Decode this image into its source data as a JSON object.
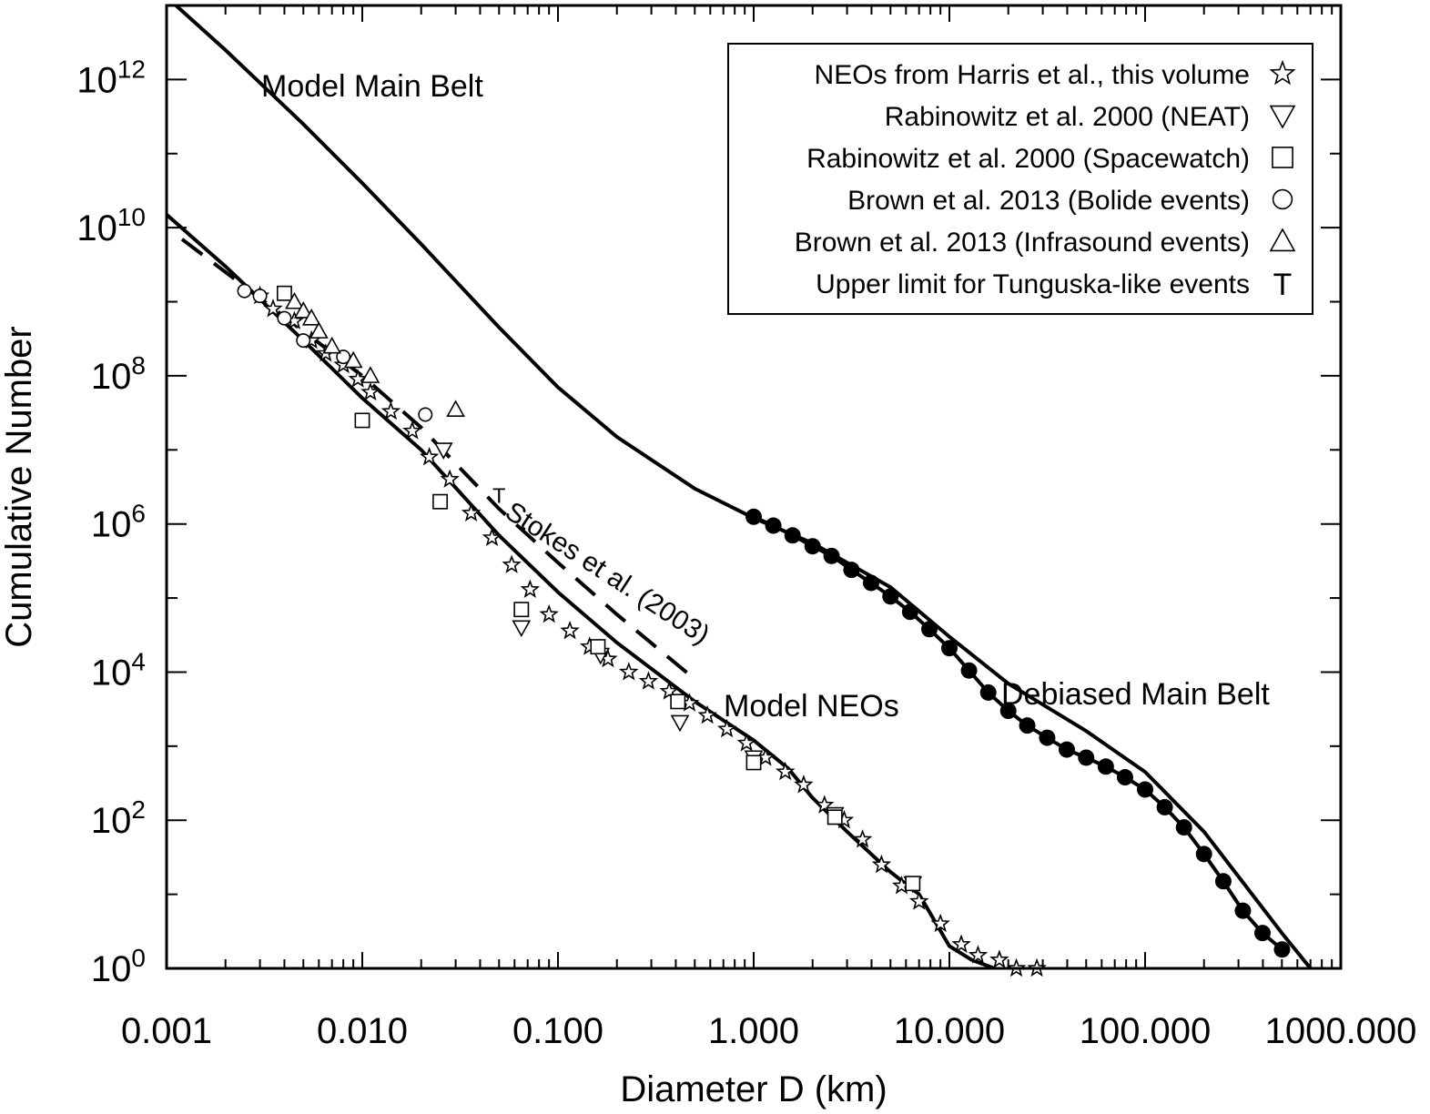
{
  "chart_data": {
    "type": "scatter",
    "xlabel": "Diameter D (km)",
    "ylabel": "Cumulative Number",
    "xscale": "log",
    "yscale": "log",
    "xlim": [
      0.001,
      1000
    ],
    "ylim": [
      1,
      10000000000000.0
    ],
    "grid": false,
    "legend_position": "top-right",
    "x_tick_labels": [
      "0.001",
      "0.010",
      "0.100",
      "1.000",
      "10.000",
      "100.000",
      "1000.000"
    ],
    "x_tick_values": [
      0.001,
      0.01,
      0.1,
      1,
      10,
      100,
      1000
    ],
    "y_tick_base": [
      "10",
      "10",
      "10",
      "10",
      "10",
      "10",
      "10"
    ],
    "y_tick_exp": [
      "0",
      "2",
      "4",
      "6",
      "8",
      "10",
      "12"
    ],
    "y_tick_values": [
      1,
      100,
      10000,
      1000000,
      100000000,
      10000000000,
      1000000000000
    ],
    "legend": [
      {
        "label": "NEOs from Harris et al., this volume",
        "symbol": "☆"
      },
      {
        "label": "Rabinowitz et al. 2000 (NEAT)",
        "symbol": "▽"
      },
      {
        "label": "Rabinowitz et al. 2000 (Spacewatch)",
        "symbol": "□"
      },
      {
        "label": "Brown et al. 2013 (Bolide events)",
        "symbol": "○"
      },
      {
        "label": "Brown et al. 2013 (Infrasound events)",
        "symbol": "△"
      },
      {
        "label": "Upper limit for Tunguska-like events",
        "symbol": "T"
      }
    ],
    "annotations": {
      "model_main_belt": "Model Main Belt",
      "model_neos": "Model NEOs",
      "debiased_main_belt": "Debiased Main Belt",
      "stokes": "Stokes et al. (2003)",
      "tunguska_marker": "T"
    },
    "series": [
      {
        "name": "Model Main Belt",
        "kind": "line",
        "points": [
          [
            0.001,
            13000000000000.0
          ],
          [
            0.002,
            2500000000000.0
          ],
          [
            0.005,
            250000000000.0
          ],
          [
            0.01,
            40000000000.0
          ],
          [
            0.02,
            6000000000.0
          ],
          [
            0.05,
            450000000.0
          ],
          [
            0.1,
            70000000.0
          ],
          [
            0.2,
            15000000.0
          ],
          [
            0.5,
            3000000.0
          ],
          [
            1,
            1200000.0
          ],
          [
            2,
            550000.0
          ],
          [
            5,
            140000.0
          ],
          [
            10,
            30000.0
          ],
          [
            20,
            7000.0
          ],
          [
            50,
            1600.0
          ],
          [
            100,
            450.0
          ],
          [
            200,
            70
          ],
          [
            500,
            3
          ],
          [
            700,
            1
          ]
        ]
      },
      {
        "name": "Debiased Main Belt",
        "kind": "points",
        "points": [
          [
            1,
            1250000.0
          ],
          [
            1.26,
            950000.0
          ],
          [
            1.58,
            700000.0
          ],
          [
            2,
            500000.0
          ],
          [
            2.5,
            370000.0
          ],
          [
            3.16,
            240000.0
          ],
          [
            3.98,
            160000.0
          ],
          [
            5,
            105000.0
          ],
          [
            6.3,
            65000.0
          ],
          [
            7.9,
            38000.0
          ],
          [
            10,
            21000.0
          ],
          [
            12.6,
            10500.0
          ],
          [
            15.8,
            5300.0
          ],
          [
            20,
            3000.0
          ],
          [
            25,
            1900.0
          ],
          [
            31.6,
            1300.0
          ],
          [
            39.8,
            900.0
          ],
          [
            50,
            700.0
          ],
          [
            63,
            530.0
          ],
          [
            79,
            380.0
          ],
          [
            100,
            260.0
          ],
          [
            126,
            150.0
          ],
          [
            158,
            80
          ],
          [
            200,
            35
          ],
          [
            251,
            15
          ],
          [
            316,
            6
          ],
          [
            398,
            3
          ],
          [
            501,
            1.8
          ]
        ]
      },
      {
        "name": "Model NEOs",
        "kind": "line",
        "points": [
          [
            0.001,
            15000000000.0
          ],
          [
            0.002,
            3000000000.0
          ],
          [
            0.005,
            300000000.0
          ],
          [
            0.01,
            50000000.0
          ],
          [
            0.02,
            10000000.0
          ],
          [
            0.05,
            700000.0
          ],
          [
            0.1,
            120000.0
          ],
          [
            0.2,
            25000.0
          ],
          [
            0.5,
            4000.0
          ],
          [
            1,
            1200.0
          ],
          [
            1.5,
            500.0
          ],
          [
            2,
            200.0
          ],
          [
            3,
            70
          ],
          [
            5,
            20
          ],
          [
            7,
            10
          ],
          [
            10,
            2
          ],
          [
            13,
            1.3
          ],
          [
            17,
            1
          ]
        ]
      },
      {
        "name": "Stokes et al. (2003)",
        "kind": "dashed",
        "points": [
          [
            0.0012,
            7000000000.0
          ],
          [
            0.005,
            400000000.0
          ],
          [
            0.01,
            100000000.0
          ],
          [
            0.02,
            20000000.0
          ],
          [
            0.05,
            1600000.0
          ],
          [
            0.1,
            300000.0
          ],
          [
            0.2,
            60000.0
          ],
          [
            0.5,
            8000.0
          ]
        ]
      },
      {
        "name": "NEOs from Harris et al., this volume",
        "kind": "marker",
        "symbol": "☆",
        "points": [
          [
            0.003,
            1200000000.0
          ],
          [
            0.0035,
            800000000.0
          ],
          [
            0.0045,
            550000000.0
          ],
          [
            0.0055,
            300000000.0
          ],
          [
            0.0065,
            200000000.0
          ],
          [
            0.008,
            140000000.0
          ],
          [
            0.0095,
            90000000.0
          ],
          [
            0.011,
            60000000.0
          ],
          [
            0.014,
            33000000.0
          ],
          [
            0.018,
            18000000.0
          ],
          [
            0.022,
            8000000.0
          ],
          [
            0.028,
            4000000.0
          ],
          [
            0.036,
            1400000.0
          ],
          [
            0.046,
            650000.0
          ],
          [
            0.058,
            280000.0
          ],
          [
            0.072,
            130000.0
          ],
          [
            0.09,
            60000.0
          ],
          [
            0.115,
            36000.0
          ],
          [
            0.145,
            22000.0
          ],
          [
            0.18,
            15000.0
          ],
          [
            0.23,
            10000.0
          ],
          [
            0.29,
            7500.0
          ],
          [
            0.37,
            5500.0
          ],
          [
            0.47,
            3800.0
          ],
          [
            0.58,
            2600.0
          ],
          [
            0.73,
            1700.0
          ],
          [
            0.92,
            1100.0
          ],
          [
            1.15,
            700.0
          ],
          [
            1.45,
            450.0
          ],
          [
            1.8,
            300.0
          ],
          [
            2.3,
            160.0
          ],
          [
            2.9,
            100.0
          ],
          [
            3.6,
            55
          ],
          [
            4.5,
            25
          ],
          [
            5.7,
            13
          ],
          [
            7,
            8
          ],
          [
            9,
            4
          ],
          [
            11.5,
            2.1
          ],
          [
            14,
            1.5
          ],
          [
            18,
            1.3
          ],
          [
            22,
            1
          ],
          [
            28,
            1
          ]
        ]
      },
      {
        "name": "Rabinowitz et al. 2000 (NEAT)",
        "kind": "marker",
        "symbol": "▽",
        "points": [
          [
            0.026,
            10000000.0
          ],
          [
            0.065,
            40000.0
          ],
          [
            0.165,
            17000.0
          ],
          [
            0.42,
            2100.0
          ],
          [
            1,
            700.0
          ],
          [
            2.6,
            120.0
          ],
          [
            6.5,
            14
          ]
        ]
      },
      {
        "name": "Rabinowitz et al. 2000 (Spacewatch)",
        "kind": "marker",
        "symbol": "□",
        "points": [
          [
            0.004,
            1300000000.0
          ],
          [
            0.01,
            25000000.0
          ],
          [
            0.025,
            2000000.0
          ],
          [
            0.065,
            70000.0
          ],
          [
            0.16,
            22000.0
          ],
          [
            0.41,
            4000.0
          ],
          [
            1,
            600.0
          ],
          [
            2.6,
            110.0
          ],
          [
            6.5,
            14
          ]
        ]
      },
      {
        "name": "Brown et al. 2013 (Bolide events)",
        "kind": "marker",
        "symbol": "○",
        "points": [
          [
            0.0025,
            1400000000.0
          ],
          [
            0.003,
            1200000000.0
          ],
          [
            0.004,
            600000000.0
          ],
          [
            0.005,
            300000000.0
          ],
          [
            0.008,
            180000000.0
          ],
          [
            0.021,
            30000000.0
          ]
        ]
      },
      {
        "name": "Brown et al. 2013 (Infrasound events)",
        "kind": "marker",
        "symbol": "△",
        "points": [
          [
            0.0045,
            1000000000.0
          ],
          [
            0.005,
            750000000.0
          ],
          [
            0.0055,
            600000000.0
          ],
          [
            0.006,
            400000000.0
          ],
          [
            0.007,
            250000000.0
          ],
          [
            0.009,
            160000000.0
          ],
          [
            0.011,
            100000000.0
          ],
          [
            0.03,
            35000000.0
          ]
        ]
      },
      {
        "name": "Upper limit for Tunguska-like events",
        "kind": "marker",
        "symbol": "T",
        "points": [
          [
            0.05,
            2500000.0
          ]
        ]
      }
    ]
  }
}
